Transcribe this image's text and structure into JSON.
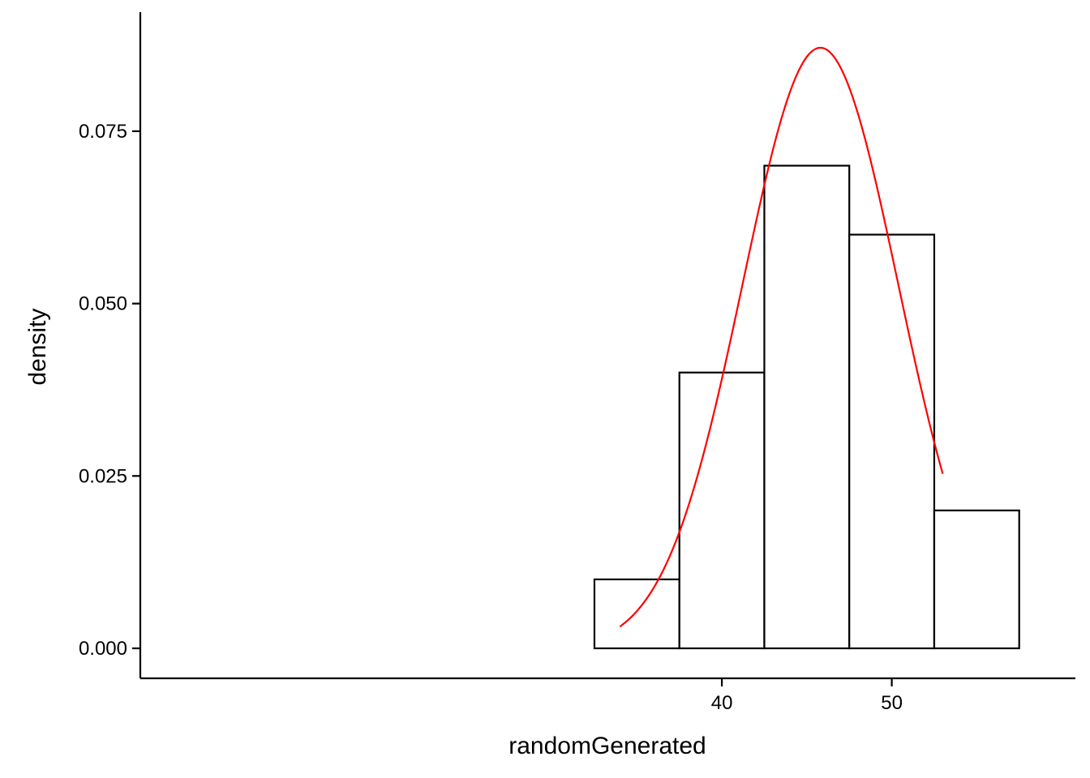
{
  "chart_data": {
    "type": "bar",
    "subtype": "histogram-with-density-curve",
    "title": "",
    "xlabel": "randomGenerated",
    "ylabel": "density",
    "xlim": [
      32.5,
      57.5
    ],
    "ylim": [
      0,
      0.09
    ],
    "x_ticks": [
      {
        "value": 40,
        "label": "40"
      },
      {
        "value": 50,
        "label": "50"
      }
    ],
    "y_ticks": [
      {
        "value": 0.0,
        "label": "0.000"
      },
      {
        "value": 0.025,
        "label": "0.025"
      },
      {
        "value": 0.05,
        "label": "0.050"
      },
      {
        "value": 0.075,
        "label": "0.075"
      }
    ],
    "bins": [
      {
        "x_start": 32.5,
        "x_end": 37.5,
        "density": 0.01
      },
      {
        "x_start": 37.5,
        "x_end": 42.5,
        "density": 0.04
      },
      {
        "x_start": 42.5,
        "x_end": 47.5,
        "density": 0.07
      },
      {
        "x_start": 47.5,
        "x_end": 52.5,
        "density": 0.06
      },
      {
        "x_start": 52.5,
        "x_end": 57.5,
        "density": 0.02
      }
    ],
    "density_curve": {
      "distribution": "normal",
      "mean": 45.8,
      "sd": 4.58,
      "x_range": [
        34.0,
        53.0
      ]
    },
    "grid": false,
    "legend": "none",
    "colors": {
      "bar_fill": "#ffffff",
      "bar_stroke": "#000000",
      "curve": "#ff0000",
      "axis": "#000000"
    }
  }
}
